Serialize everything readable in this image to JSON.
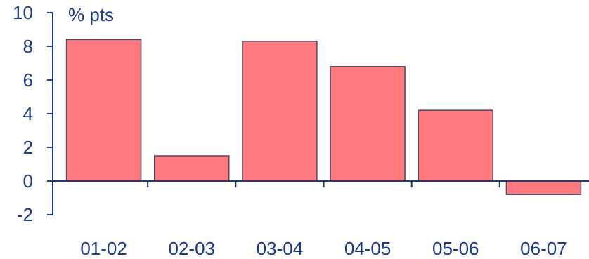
{
  "chart_data": {
    "type": "bar",
    "title": "",
    "unit_label": "% pts",
    "xlabel": "",
    "ylabel": "",
    "categories": [
      "01-02",
      "02-03",
      "03-04",
      "04-05",
      "05-06",
      "06-07"
    ],
    "values": [
      8.4,
      1.5,
      8.3,
      6.8,
      4.2,
      -0.8
    ],
    "ylim": [
      -2,
      10
    ],
    "yticks": [
      "-2",
      "0",
      "2",
      "4",
      "6",
      "8",
      "10"
    ],
    "grid": false,
    "legend": "none"
  },
  "colors": {
    "bar_fill": "#ff7a7f",
    "bar_stroke": "#4a4a6a",
    "axis": "#1a3a8f",
    "text": "#1a3a8f"
  }
}
